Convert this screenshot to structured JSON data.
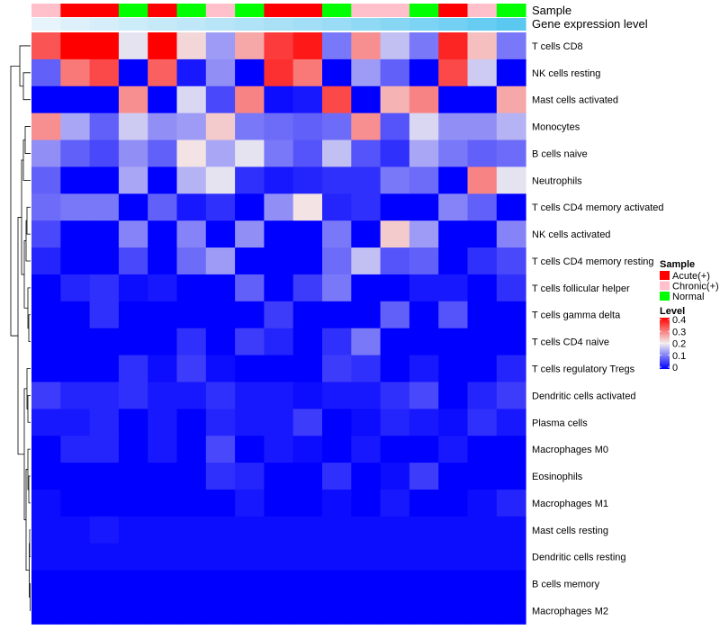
{
  "chart_data": {
    "type": "heatmap",
    "title": "",
    "annotation_rows": [
      {
        "name": "Sample",
        "values": [
          "Chronic(+)",
          "Acute(+)",
          "Acute(+)",
          "Normal",
          "Acute(+)",
          "Normal",
          "Chronic(+)",
          "Normal",
          "Acute(+)",
          "Acute(+)",
          "Normal",
          "Chronic(+)",
          "Chronic(+)",
          "Normal",
          "Acute(+)",
          "Chronic(+)",
          "Normal"
        ]
      },
      {
        "name": "Gene expression level",
        "values": [
          0.02,
          0.06,
          0.1,
          0.13,
          0.16,
          0.19,
          0.22,
          0.25,
          0.28,
          0.31,
          0.34,
          0.38,
          0.42,
          0.46,
          0.5,
          0.55,
          0.6
        ]
      }
    ],
    "rows": [
      "T cells CD8",
      "NK cells resting",
      "Mast cells activated",
      "Monocytes",
      "B cells naive",
      "Neutrophils",
      "T cells CD4 memory activated",
      "NK cells activated",
      "T cells CD4 memory resting",
      "T cells follicular helper",
      "T cells gamma delta",
      "T cells CD4 naive",
      "T cells regulatory  Tregs",
      "Dendritic cells activated",
      "Plasma cells",
      "Macrophages M0",
      "Eosinophils",
      "Macrophages M1",
      "Mast cells resting",
      "Dendritic cells resting",
      "B cells memory",
      "Macrophages M2"
    ],
    "values": [
      [
        0.33,
        0.4,
        0.4,
        0.19,
        0.4,
        0.22,
        0.13,
        0.26,
        0.35,
        0.38,
        0.1,
        0.28,
        0.16,
        0.1,
        0.37,
        0.24,
        0.1
      ],
      [
        0.08,
        0.3,
        0.34,
        0.0,
        0.32,
        0.02,
        0.12,
        0.0,
        0.36,
        0.3,
        0.0,
        0.13,
        0.08,
        0.0,
        0.34,
        0.17,
        0.0
      ],
      [
        0.0,
        0.0,
        0.0,
        0.28,
        0.0,
        0.18,
        0.06,
        0.29,
        0.01,
        0.02,
        0.34,
        0.0,
        0.25,
        0.29,
        0.0,
        0.0,
        0.26
      ],
      [
        0.28,
        0.14,
        0.08,
        0.17,
        0.12,
        0.13,
        0.23,
        0.1,
        0.09,
        0.08,
        0.09,
        0.28,
        0.07,
        0.18,
        0.12,
        0.12,
        0.15
      ],
      [
        0.12,
        0.08,
        0.06,
        0.12,
        0.08,
        0.21,
        0.14,
        0.19,
        0.1,
        0.07,
        0.16,
        0.07,
        0.04,
        0.14,
        0.1,
        0.08,
        0.09
      ],
      [
        0.08,
        0.0,
        0.0,
        0.14,
        0.0,
        0.15,
        0.19,
        0.04,
        0.02,
        0.03,
        0.04,
        0.04,
        0.1,
        0.09,
        0.0,
        0.29,
        0.19
      ],
      [
        0.09,
        0.1,
        0.1,
        0.0,
        0.08,
        0.02,
        0.04,
        0.0,
        0.12,
        0.21,
        0.03,
        0.04,
        0.0,
        0.0,
        0.11,
        0.08,
        0.0
      ],
      [
        0.06,
        0.0,
        0.0,
        0.11,
        0.0,
        0.11,
        0.0,
        0.12,
        0.0,
        0.0,
        0.1,
        0.0,
        0.23,
        0.13,
        0.0,
        0.0,
        0.11
      ],
      [
        0.03,
        0.0,
        0.0,
        0.06,
        0.0,
        0.09,
        0.13,
        0.0,
        0.0,
        0.0,
        0.09,
        0.16,
        0.07,
        0.08,
        0.0,
        0.04,
        0.06
      ],
      [
        0.0,
        0.03,
        0.04,
        0.01,
        0.02,
        0.0,
        0.0,
        0.08,
        0.0,
        0.05,
        0.1,
        0.0,
        0.0,
        0.02,
        0.02,
        0.0,
        0.04
      ],
      [
        0.0,
        0.0,
        0.04,
        0.0,
        0.0,
        0.0,
        0.0,
        0.0,
        0.05,
        0.0,
        0.0,
        0.0,
        0.08,
        0.0,
        0.07,
        0.0,
        0.0
      ],
      [
        0.0,
        0.0,
        0.0,
        0.0,
        0.0,
        0.04,
        0.0,
        0.05,
        0.03,
        0.0,
        0.04,
        0.1,
        0.0,
        0.0,
        0.0,
        0.0,
        0.0
      ],
      [
        0.0,
        0.0,
        0.0,
        0.04,
        0.01,
        0.05,
        0.01,
        0.0,
        0.0,
        0.0,
        0.05,
        0.04,
        0.0,
        0.02,
        0.0,
        0.0,
        0.03
      ],
      [
        0.05,
        0.03,
        0.03,
        0.04,
        0.02,
        0.02,
        0.04,
        0.02,
        0.02,
        0.01,
        0.02,
        0.02,
        0.04,
        0.06,
        0.0,
        0.03,
        0.05
      ],
      [
        0.02,
        0.02,
        0.03,
        0.0,
        0.02,
        0.0,
        0.03,
        0.02,
        0.02,
        0.05,
        0.0,
        0.01,
        0.03,
        0.02,
        0.01,
        0.04,
        0.02
      ],
      [
        0.0,
        0.03,
        0.03,
        0.0,
        0.02,
        0.0,
        0.06,
        0.0,
        0.02,
        0.01,
        0.0,
        0.02,
        0.0,
        0.0,
        0.02,
        0.0,
        0.0
      ],
      [
        0.0,
        0.0,
        0.0,
        0.0,
        0.0,
        0.0,
        0.04,
        0.03,
        0.0,
        0.0,
        0.04,
        0.0,
        0.01,
        0.05,
        0.0,
        0.0,
        0.0
      ],
      [
        0.01,
        0.0,
        0.0,
        0.0,
        0.0,
        0.0,
        0.0,
        0.02,
        0.0,
        0.0,
        0.01,
        0.0,
        0.02,
        0.0,
        0.0,
        0.01,
        0.03
      ],
      [
        0.01,
        0.01,
        0.02,
        0.01,
        0.01,
        0.01,
        0.01,
        0.01,
        0.01,
        0.01,
        0.01,
        0.01,
        0.01,
        0.01,
        0.01,
        0.01,
        0.01
      ],
      [
        0.01,
        0.01,
        0.01,
        0.01,
        0.01,
        0.01,
        0.01,
        0.01,
        0.01,
        0.01,
        0.01,
        0.01,
        0.01,
        0.01,
        0.01,
        0.01,
        0.01
      ],
      [
        0.0,
        0.0,
        0.0,
        0.0,
        0.0,
        0.0,
        0.0,
        0.0,
        0.0,
        0.0,
        0.0,
        0.0,
        0.0,
        0.0,
        0.0,
        0.0,
        0.0
      ],
      [
        0.0,
        0.0,
        0.0,
        0.0,
        0.0,
        0.0,
        0.0,
        0.0,
        0.0,
        0.0,
        0.0,
        0.0,
        0.0,
        0.0,
        0.0,
        0.0,
        0.0
      ]
    ],
    "color_scale": {
      "min": 0,
      "max": 0.4,
      "low_color": "#0000ff",
      "mid_color": "#f2eff0",
      "high_color": "#ff0000",
      "mid_value": 0.2
    },
    "annotation_colors": {
      "Sample": {
        "Acute(+)": "#ff0000",
        "Chronic(+)": "#ffc0cb",
        "Normal": "#00ff00"
      },
      "Gene expression level": {
        "low": "#e8f4fb",
        "high": "#5bc8f0"
      }
    },
    "legend": {
      "placement": "right",
      "sample_title": "Sample",
      "sample_items": [
        "Acute(+)",
        "Chronic(+)",
        "Normal"
      ],
      "level_title": "Level",
      "level_ticks": [
        "0.4",
        "0.3",
        "0.2",
        "0.1",
        "0"
      ]
    },
    "row_dendrogram": true
  }
}
